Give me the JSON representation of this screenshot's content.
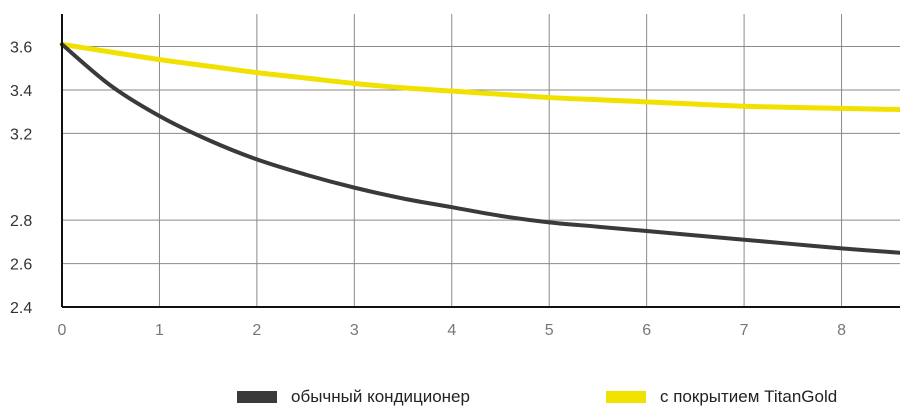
{
  "chart_data": {
    "type": "line",
    "x": [
      0,
      0.5,
      1,
      1.5,
      2,
      2.5,
      3,
      3.5,
      4,
      4.5,
      5,
      5.5,
      6,
      6.5,
      7,
      7.5,
      8,
      8.6
    ],
    "xlim": [
      0,
      8.6
    ],
    "ylim": [
      2.4,
      3.75
    ],
    "xticks": [
      "0",
      "1",
      "2",
      "3",
      "4",
      "5",
      "6",
      "7",
      "8"
    ],
    "yticks": [
      "2.4",
      "2.6",
      "2.8",
      "3.2",
      "3.4",
      "3.6"
    ],
    "ytick_values": [
      2.4,
      2.6,
      2.8,
      3.2,
      3.4,
      3.6
    ],
    "grid": true,
    "legend_position": "bottom",
    "series": [
      {
        "name": "обычный кондиционер",
        "color": "#3a3a3a",
        "values": [
          3.61,
          3.42,
          3.28,
          3.17,
          3.08,
          3.01,
          2.95,
          2.9,
          2.86,
          2.82,
          2.79,
          2.77,
          2.75,
          2.73,
          2.71,
          2.69,
          2.67,
          2.65
        ]
      },
      {
        "name": "с покрытием TitanGold",
        "color": "#f0e100",
        "values": [
          3.61,
          3.575,
          3.54,
          3.51,
          3.48,
          3.455,
          3.43,
          3.41,
          3.395,
          3.38,
          3.365,
          3.355,
          3.345,
          3.335,
          3.325,
          3.32,
          3.315,
          3.31
        ]
      }
    ]
  }
}
